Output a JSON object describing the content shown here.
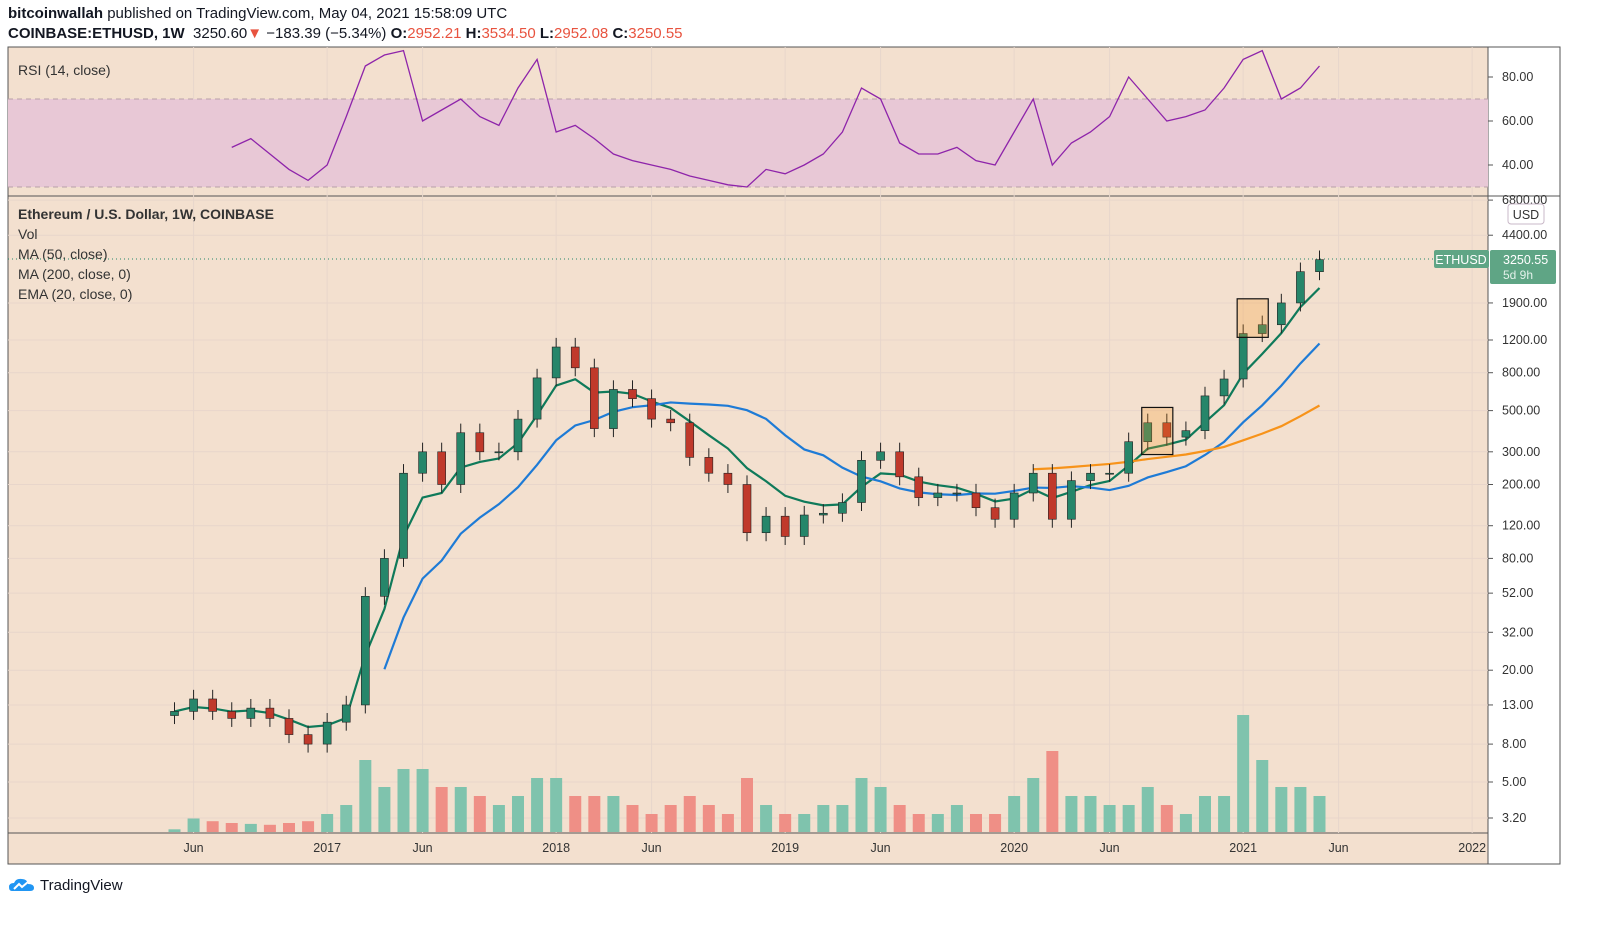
{
  "header": {
    "author": "bitcoinwallah",
    "published": "published on TradingView.com, May 04, 2021 15:58:09 UTC",
    "symbol": "COINBASE:ETHUSD, 1W",
    "last": "3250.60",
    "change": "−183.39 (−5.34%)",
    "o_label": "O:",
    "o": "2952.21",
    "h_label": "H:",
    "h": "3534.50",
    "l_label": "L:",
    "l": "2952.08",
    "c_label": "C:",
    "c": "3250.55"
  },
  "footer": {
    "logo_text": "TradingView"
  },
  "colors": {
    "bg": "#f3e0cf",
    "up": "#26866a",
    "down": "#c0392b",
    "ema20": "#0f7a5a",
    "ma50": "#1e7bd6",
    "ma200": "#f7931a",
    "rsi": "#8e24aa",
    "rsi_band": "#e8c8d6",
    "vol_up": "#7fc3ad",
    "vol_down": "#ef8f86"
  },
  "chart_data": [
    {
      "type": "line",
      "title": "RSI (14, close)",
      "ylim": [
        25,
        95
      ],
      "yticks": [
        "80.00",
        "60.00",
        "40.00"
      ],
      "ytick_values": [
        80,
        60,
        40
      ],
      "band": [
        30,
        70
      ],
      "x": [
        "2016-08",
        "2016-09",
        "2016-10",
        "2016-11",
        "2016-12",
        "2017-01",
        "2017-02",
        "2017-03",
        "2017-04",
        "2017-05",
        "2017-06",
        "2017-07",
        "2017-08",
        "2017-09",
        "2017-10",
        "2017-11",
        "2017-12",
        "2018-01",
        "2018-02",
        "2018-03",
        "2018-04",
        "2018-05",
        "2018-06",
        "2018-07",
        "2018-08",
        "2018-09",
        "2018-10",
        "2018-11",
        "2018-12",
        "2019-01",
        "2019-02",
        "2019-03",
        "2019-04",
        "2019-05",
        "2019-06",
        "2019-07",
        "2019-08",
        "2019-09",
        "2019-10",
        "2019-11",
        "2019-12",
        "2020-01",
        "2020-02",
        "2020-03",
        "2020-04",
        "2020-05",
        "2020-06",
        "2020-07",
        "2020-08",
        "2020-09",
        "2020-10",
        "2020-11",
        "2020-12",
        "2021-01",
        "2021-02",
        "2021-03",
        "2021-04",
        "2021-05"
      ],
      "values": [
        48,
        52,
        45,
        38,
        33,
        40,
        62,
        85,
        90,
        92,
        60,
        65,
        70,
        62,
        58,
        75,
        88,
        55,
        58,
        52,
        45,
        42,
        40,
        38,
        35,
        33,
        31,
        30,
        38,
        36,
        40,
        45,
        55,
        75,
        70,
        50,
        45,
        45,
        48,
        42,
        40,
        55,
        70,
        40,
        50,
        55,
        62,
        80,
        70,
        60,
        62,
        65,
        75,
        88,
        92,
        70,
        75,
        85
      ]
    },
    {
      "type": "candlestick",
      "title": "Ethereum / U.S. Dollar, 1W, COINBASE",
      "legend": [
        "Vol",
        "MA (50, close)",
        "MA (200, close, 0)",
        "EMA (20, close, 0)"
      ],
      "currency": "USD",
      "scale": "log",
      "ylim": [
        3.0,
        7000
      ],
      "yticks": [
        "6800.00",
        "4400.00",
        "1900.00",
        "1200.00",
        "800.00",
        "500.00",
        "300.00",
        "200.00",
        "120.00",
        "80.00",
        "52.00",
        "32.00",
        "20.00",
        "13.00",
        "8.00",
        "5.00",
        "3.20"
      ],
      "ytick_values": [
        6800,
        4400,
        1900,
        1200,
        800,
        500,
        300,
        200,
        120,
        80,
        52,
        32,
        20,
        13,
        8,
        5,
        3.2
      ],
      "xticks": [
        "Jun",
        "2017",
        "Jun",
        "2018",
        "Jun",
        "2019",
        "Jun",
        "2020",
        "Jun",
        "2021",
        "Jun",
        "2022"
      ],
      "xtick_dates": [
        "2016-06",
        "2017-01",
        "2017-06",
        "2018-01",
        "2018-06",
        "2019-01",
        "2019-06",
        "2020-01",
        "2020-06",
        "2021-01",
        "2021-06",
        "2022-01"
      ],
      "last_label": "ETHUSD",
      "last_price": "3250.55",
      "countdown": "5d 9h",
      "x": [
        "2016-05",
        "2016-06",
        "2016-07",
        "2016-08",
        "2016-09",
        "2016-10",
        "2016-11",
        "2016-12",
        "2017-01",
        "2017-02",
        "2017-03",
        "2017-04",
        "2017-05",
        "2017-06",
        "2017-07",
        "2017-08",
        "2017-09",
        "2017-10",
        "2017-11",
        "2017-12",
        "2018-01",
        "2018-02",
        "2018-03",
        "2018-04",
        "2018-05",
        "2018-06",
        "2018-07",
        "2018-08",
        "2018-09",
        "2018-10",
        "2018-11",
        "2018-12",
        "2019-01",
        "2019-02",
        "2019-03",
        "2019-04",
        "2019-05",
        "2019-06",
        "2019-07",
        "2019-08",
        "2019-09",
        "2019-10",
        "2019-11",
        "2019-12",
        "2020-01",
        "2020-02",
        "2020-03",
        "2020-04",
        "2020-05",
        "2020-06",
        "2020-07",
        "2020-08",
        "2020-09",
        "2020-10",
        "2020-11",
        "2020-12",
        "2021-01",
        "2021-02",
        "2021-03",
        "2021-04",
        "2021-05"
      ],
      "close": [
        12,
        14,
        12,
        11,
        12.5,
        11,
        9,
        8,
        10.5,
        13,
        50,
        80,
        230,
        300,
        200,
        380,
        300,
        300,
        450,
        750,
        1100,
        850,
        400,
        650,
        580,
        450,
        430,
        280,
        230,
        200,
        110,
        135,
        105,
        137,
        140,
        160,
        270,
        300,
        220,
        170,
        180,
        180,
        150,
        130,
        180,
        230,
        130,
        210,
        230,
        230,
        340,
        430,
        360,
        390,
        600,
        740,
        1300,
        1450,
        1900,
        2800,
        3250
      ],
      "volume": [
        0.3,
        1.5,
        1.2,
        1,
        0.9,
        0.8,
        1,
        1.2,
        2,
        3,
        8,
        5,
        7,
        7,
        5,
        5,
        4,
        3,
        4,
        6,
        6,
        4,
        4,
        4,
        3,
        2,
        3,
        4,
        3,
        2,
        6,
        3,
        2,
        2,
        3,
        3,
        6,
        5,
        3,
        2,
        2,
        3,
        2,
        2,
        4,
        6,
        9,
        4,
        4,
        3,
        3,
        5,
        3,
        2,
        4,
        4,
        13,
        8,
        5,
        5,
        4
      ]
    },
    {
      "type": "box_annotations",
      "boxes": [
        {
          "from": "2020-08",
          "to": "2020-09",
          "low": 290,
          "high": 520
        },
        {
          "from": "2021-01",
          "to": "2021-02",
          "low": 1240,
          "high": 2000
        }
      ]
    }
  ]
}
